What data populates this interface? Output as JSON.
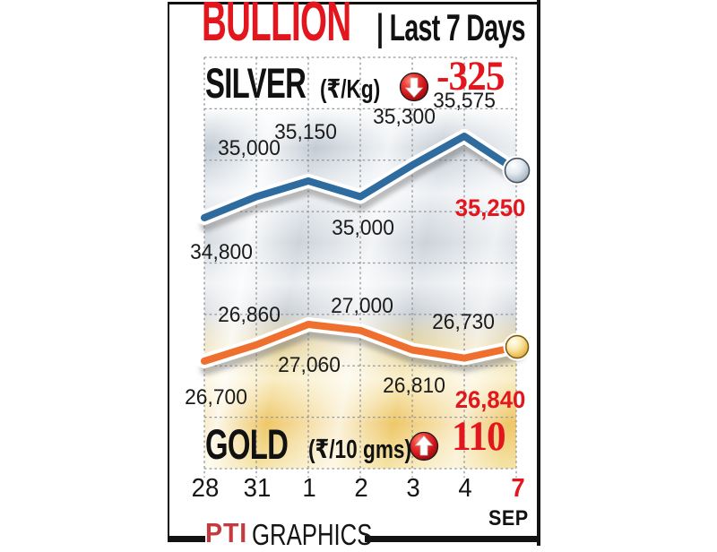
{
  "title": {
    "main": "BULLION",
    "sub": "| Last 7 Days"
  },
  "sections": {
    "silver": {
      "name": "SILVER",
      "unit": "(₹/Kg)",
      "change": "-325",
      "direction": "down"
    },
    "gold": {
      "name": "GOLD",
      "unit": "(₹/10 gms)",
      "change": "110",
      "direction": "up"
    }
  },
  "axis": {
    "categories": [
      "28",
      "31",
      "1",
      "2",
      "3",
      "4",
      "7"
    ],
    "month": "SEP",
    "highlight_index": 6
  },
  "footer": {
    "logo": "PTI",
    "text": "GRAPHICS"
  },
  "colors": {
    "accent_red": "#e3161d",
    "silver_line": "#2e6b9e",
    "gold_line": "#ef6f2e"
  },
  "chart_data": {
    "type": "line",
    "title": "BULLION | Last 7 Days",
    "categories": [
      "28",
      "31",
      "1",
      "2",
      "3",
      "4",
      "7"
    ],
    "month": "SEP",
    "grid": true,
    "legend_position": "inline-section-headers",
    "series": [
      {
        "name": "SILVER",
        "unit": "₹/Kg",
        "change": -325,
        "color": "#2e6b9e",
        "values": [
          34800,
          35000,
          35150,
          35000,
          35300,
          35575,
          35250
        ],
        "labels": [
          "34,800",
          "35,000",
          "35,150",
          "35,000",
          "35,300",
          "35,575",
          "35,250"
        ]
      },
      {
        "name": "GOLD",
        "unit": "₹/10 gms",
        "change": 110,
        "color": "#ef6f2e",
        "values": [
          26700,
          26860,
          27060,
          27000,
          26810,
          26730,
          26840
        ],
        "labels": [
          "26,700",
          "26,860",
          "27,060",
          "27,000",
          "26,810",
          "26,730",
          "26,840"
        ]
      }
    ]
  }
}
